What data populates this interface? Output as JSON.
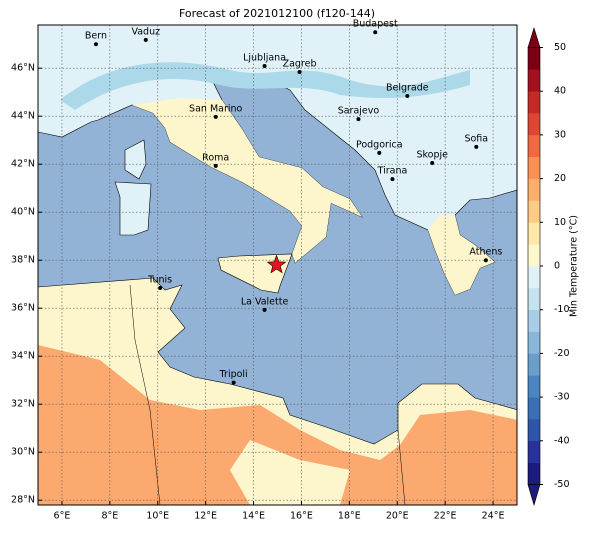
{
  "map": {
    "title": "Forecast of 2021012100 (f120-144)",
    "xlim": [
      5,
      25
    ],
    "ylim": [
      27.8,
      47.8
    ],
    "xticks": [
      {
        "value": 6,
        "label": "6°E"
      },
      {
        "value": 8,
        "label": "8°E"
      },
      {
        "value": 10,
        "label": "10°E"
      },
      {
        "value": 12,
        "label": "12°E"
      },
      {
        "value": 14,
        "label": "14°E"
      },
      {
        "value": 16,
        "label": "16°E"
      },
      {
        "value": 18,
        "label": "18°E"
      },
      {
        "value": 20,
        "label": "20°E"
      },
      {
        "value": 22,
        "label": "22°E"
      },
      {
        "value": 24,
        "label": "24°E"
      }
    ],
    "yticks": [
      {
        "value": 28,
        "label": "28°N"
      },
      {
        "value": 30,
        "label": "30°N"
      },
      {
        "value": 32,
        "label": "32°N"
      },
      {
        "value": 34,
        "label": "34°N"
      },
      {
        "value": 36,
        "label": "36°N"
      },
      {
        "value": 38,
        "label": "38°N"
      },
      {
        "value": 40,
        "label": "40°N"
      },
      {
        "value": 42,
        "label": "42°N"
      },
      {
        "value": 44,
        "label": "44°N"
      },
      {
        "value": 46,
        "label": "46°N"
      }
    ],
    "grid": true,
    "cities": [
      {
        "name": "Bern",
        "lon": 7.42,
        "lat": 47.0
      },
      {
        "name": "Vaduz",
        "lon": 9.5,
        "lat": 47.18
      },
      {
        "name": "Budapest",
        "lon": 19.08,
        "lat": 47.5
      },
      {
        "name": "Ljubljana",
        "lon": 14.46,
        "lat": 46.09
      },
      {
        "name": "Zagreb",
        "lon": 15.92,
        "lat": 45.84
      },
      {
        "name": "Belgrade",
        "lon": 20.42,
        "lat": 44.84
      },
      {
        "name": "San Marino",
        "lon": 12.42,
        "lat": 43.97
      },
      {
        "name": "Sarajevo",
        "lon": 18.38,
        "lat": 43.88
      },
      {
        "name": "Sofia",
        "lon": 23.3,
        "lat": 42.72
      },
      {
        "name": "Podgorica",
        "lon": 19.25,
        "lat": 42.47
      },
      {
        "name": "Skopje",
        "lon": 21.46,
        "lat": 42.05
      },
      {
        "name": "Roma",
        "lon": 12.42,
        "lat": 41.93
      },
      {
        "name": "Tirana",
        "lon": 19.8,
        "lat": 41.38
      },
      {
        "name": "Athens",
        "lon": 23.7,
        "lat": 38.0
      },
      {
        "name": "Tunis",
        "lon": 10.1,
        "lat": 36.84
      },
      {
        "name": "La Valette",
        "lon": 14.46,
        "lat": 35.93
      },
      {
        "name": "Tripoli",
        "lon": 13.17,
        "lat": 32.9
      }
    ],
    "marker": {
      "lon": 14.96,
      "lat": 37.8,
      "color": "#e8141c"
    }
  },
  "colorbar": {
    "label": "Min Temperature (°C)",
    "lim": [
      -50,
      50
    ],
    "ticks": [
      -50,
      -40,
      -30,
      -20,
      -10,
      0,
      10,
      20,
      30,
      40,
      50
    ],
    "colors": [
      "#1c1c7c",
      "#27339a",
      "#2f55a8",
      "#3a6fb5",
      "#4a86c0",
      "#6a9fcc",
      "#8ab6da",
      "#a9cde6",
      "#c6e2ef",
      "#e0f2f8",
      "#fdf7cc",
      "#fde8a8",
      "#fdcb85",
      "#fcae6c",
      "#f99055",
      "#ef6a42",
      "#dc4632",
      "#c32a26",
      "#a3101e",
      "#7c0014"
    ]
  }
}
